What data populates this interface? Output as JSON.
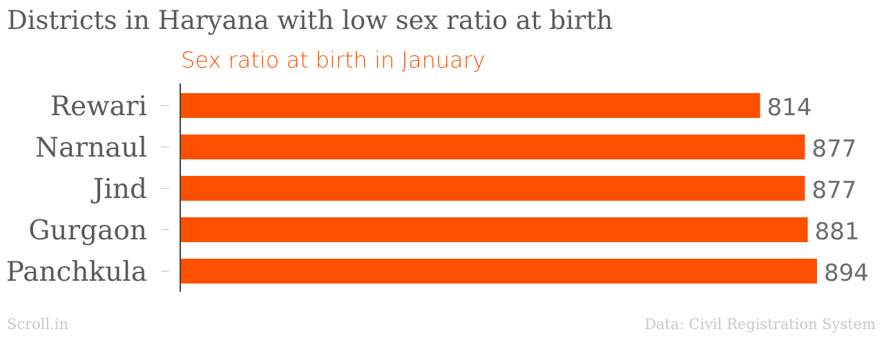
{
  "chart_data": {
    "type": "bar",
    "orientation": "horizontal",
    "title": "Districts in Haryana with low sex ratio at birth",
    "series": [
      {
        "name": "Sex ratio at birth in January",
        "values": [
          814,
          877,
          877,
          881,
          894
        ],
        "color": "#fc5000"
      }
    ],
    "categories": [
      "Rewari",
      "Narnaul",
      "Jind",
      "Gurgaon",
      "Panchkula"
    ],
    "xlim": [
      0,
      894
    ],
    "grid": false,
    "data_labels": true
  },
  "footer": {
    "source_brand": "Scroll.in",
    "credit": "Data: Civil Registration System"
  }
}
